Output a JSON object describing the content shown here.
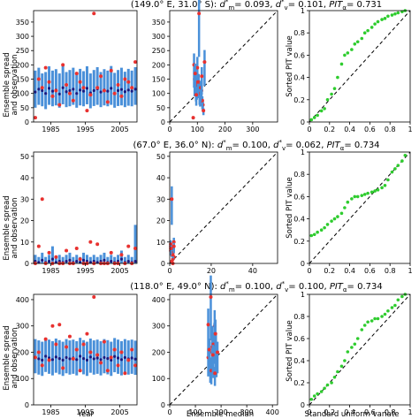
{
  "figure": {
    "row_titles": [
      "(149.0° E, 31.0° S): d*m= 0.093, d*v= 0.101, PITα= 0.731",
      "(67.0° E, 36.0° N): d*m= 0.100, d*v= 0.062, PITα= 0.734",
      "(118.0° E, 49.0° N): d*m= 0.100, d*v= 0.100, PITα= 0.734"
    ],
    "ts_ylabel_line1": "Ensemble spread",
    "ts_ylabel_line2": "and observation",
    "pit_ylabel": "Sorted PIT value",
    "xlabel_ts": "Year",
    "xlabel_scatter": "Ensemble median",
    "xlabel_pit": "Standard uniform variate",
    "colors": {
      "spread": "#4a90d9",
      "median": "#1a1a80",
      "obs": "#e8312f",
      "pit": "#2ecc2e",
      "diag": "#000000"
    }
  },
  "chart_data": [
    {
      "type": "errorbar",
      "row": 1,
      "panel": "time-series",
      "x": [
        1980,
        1981,
        1982,
        1983,
        1984,
        1985,
        1986,
        1987,
        1988,
        1989,
        1990,
        1991,
        1992,
        1993,
        1994,
        1995,
        1996,
        1997,
        1998,
        1999,
        2000,
        2001,
        2002,
        2003,
        2004,
        2005,
        2006,
        2007,
        2008,
        2009
      ],
      "median": [
        105,
        115,
        110,
        100,
        118,
        108,
        112,
        98,
        120,
        106,
        110,
        115,
        100,
        112,
        108,
        118,
        102,
        110,
        116,
        105,
        112,
        108,
        118,
        100,
        110,
        114,
        106,
        112,
        108,
        115
      ],
      "spread_low": [
        50,
        60,
        55,
        45,
        60,
        55,
        58,
        50,
        62,
        52,
        55,
        60,
        50,
        58,
        55,
        62,
        48,
        56,
        60,
        52,
        58,
        55,
        60,
        50,
        56,
        58,
        52,
        57,
        55,
        60
      ],
      "spread_high": [
        180,
        190,
        170,
        175,
        195,
        180,
        185,
        170,
        200,
        175,
        182,
        190,
        172,
        186,
        178,
        195,
        170,
        182,
        192,
        175,
        185,
        180,
        196,
        172,
        182,
        190,
        176,
        186,
        180,
        192
      ],
      "obs": [
        15,
        150,
        120,
        190,
        140,
        90,
        110,
        60,
        200,
        130,
        100,
        75,
        170,
        140,
        120,
        40,
        95,
        380,
        120,
        160,
        110,
        70,
        180,
        100,
        130,
        90,
        150,
        140,
        120,
        210
      ],
      "xticks": [
        1985,
        1995,
        2005
      ],
      "xlim": [
        1980,
        2010
      ],
      "yticks": [
        0,
        50,
        100,
        150,
        200,
        250,
        300,
        350
      ],
      "ylim": [
        0,
        390
      ]
    },
    {
      "type": "scatter",
      "row": 1,
      "panel": "median-vs-observation",
      "xlim": [
        0,
        390
      ],
      "ylim": [
        0,
        390
      ],
      "xticks": [
        0,
        100,
        200,
        300
      ],
      "yticks": [
        0,
        50,
        100,
        150,
        200,
        250,
        300,
        350
      ],
      "x": [
        85,
        90,
        95,
        100,
        105,
        110,
        115,
        120,
        88,
        98,
        108,
        118,
        92,
        102,
        112,
        122,
        96,
        106,
        116,
        126
      ],
      "y": [
        15,
        150,
        120,
        190,
        140,
        90,
        110,
        60,
        200,
        130,
        100,
        75,
        170,
        140,
        120,
        40,
        95,
        380,
        160,
        210
      ]
    },
    {
      "type": "scatter",
      "row": 1,
      "panel": "PIT",
      "xlim": [
        0,
        1
      ],
      "ylim": [
        0,
        1
      ],
      "xticks": [
        0.0,
        0.2,
        0.4,
        0.6,
        0.8,
        1.0
      ],
      "yticks": [
        0.0,
        0.2,
        0.4,
        0.6,
        0.8,
        1.0
      ],
      "x": [
        0.02,
        0.05,
        0.08,
        0.12,
        0.15,
        0.18,
        0.22,
        0.25,
        0.28,
        0.32,
        0.35,
        0.38,
        0.42,
        0.45,
        0.48,
        0.52,
        0.55,
        0.58,
        0.62,
        0.65,
        0.68,
        0.72,
        0.75,
        0.78,
        0.82,
        0.85,
        0.88,
        0.92,
        0.95
      ],
      "y": [
        0.02,
        0.04,
        0.06,
        0.1,
        0.12,
        0.2,
        0.25,
        0.3,
        0.4,
        0.52,
        0.6,
        0.62,
        0.65,
        0.7,
        0.72,
        0.75,
        0.8,
        0.82,
        0.85,
        0.88,
        0.9,
        0.92,
        0.93,
        0.95,
        0.96,
        0.97,
        0.98,
        0.99,
        1.0
      ]
    },
    {
      "type": "errorbar",
      "row": 2,
      "panel": "time-series",
      "x": [
        1980,
        1981,
        1982,
        1983,
        1984,
        1985,
        1986,
        1987,
        1988,
        1989,
        1990,
        1991,
        1992,
        1993,
        1994,
        1995,
        1996,
        1997,
        1998,
        1999,
        2000,
        2001,
        2002,
        2003,
        2004,
        2005,
        2006,
        2007,
        2008,
        2009
      ],
      "median": [
        1,
        0.5,
        1.5,
        0.5,
        1,
        2,
        0.5,
        1,
        0.5,
        1,
        1.5,
        0.5,
        1,
        0.5,
        1.5,
        1,
        0.5,
        1,
        0.5,
        1,
        1.5,
        0.5,
        1,
        0.5,
        1,
        2,
        0.5,
        1,
        0.5,
        1
      ],
      "spread_low": [
        0,
        0,
        0,
        0,
        0,
        0,
        0,
        0,
        0,
        0,
        0,
        0,
        0,
        0,
        0,
        0,
        0,
        0,
        0,
        0,
        0,
        0,
        0,
        0,
        0,
        0,
        0,
        0,
        0,
        0
      ],
      "spread_high": [
        4,
        3,
        5,
        3,
        4,
        8,
        3,
        4,
        3,
        4,
        5,
        3,
        4,
        3,
        5,
        4,
        3,
        4,
        3,
        4,
        5,
        3,
        4,
        3,
        4,
        6,
        3,
        4,
        3,
        18
      ],
      "obs": [
        0,
        8,
        30,
        0,
        5,
        0,
        3,
        0,
        0,
        6,
        0,
        0,
        7,
        2,
        0,
        0,
        10,
        0,
        9,
        0,
        0,
        0,
        5,
        0,
        0,
        4,
        0,
        8,
        0,
        7
      ],
      "xticks": [
        1985,
        1995,
        2005
      ],
      "xlim": [
        1980,
        2010
      ],
      "yticks": [
        0,
        10,
        20,
        30,
        40,
        50
      ],
      "ylim": [
        0,
        52
      ]
    },
    {
      "type": "scatter",
      "row": 2,
      "panel": "median-vs-observation",
      "xlim": [
        0,
        52
      ],
      "ylim": [
        0,
        52
      ],
      "xticks": [
        0,
        20,
        40
      ],
      "yticks": [
        0,
        10,
        20,
        30,
        40,
        50
      ],
      "x": [
        0.5,
        1,
        1.5,
        2,
        0.5,
        1,
        1.5,
        2,
        0.5,
        1,
        1.5,
        2,
        0.5,
        1,
        1.5
      ],
      "y": [
        8,
        30,
        5,
        3,
        6,
        7,
        2,
        10,
        9,
        5,
        4,
        8,
        7,
        1,
        0
      ]
    },
    {
      "type": "scatter",
      "row": 2,
      "panel": "PIT",
      "xlim": [
        0,
        1
      ],
      "ylim": [
        0,
        1
      ],
      "xticks": [
        0.0,
        0.2,
        0.4,
        0.6,
        0.8,
        1.0
      ],
      "yticks": [
        0.0,
        0.2,
        0.4,
        0.6,
        0.8,
        1.0
      ],
      "x": [
        0.02,
        0.05,
        0.08,
        0.12,
        0.15,
        0.18,
        0.22,
        0.25,
        0.28,
        0.32,
        0.35,
        0.38,
        0.42,
        0.45,
        0.48,
        0.52,
        0.55,
        0.58,
        0.62,
        0.65,
        0.68,
        0.72,
        0.75,
        0.78,
        0.82,
        0.85,
        0.88,
        0.92,
        0.95
      ],
      "y": [
        0.25,
        0.26,
        0.28,
        0.3,
        0.32,
        0.35,
        0.38,
        0.4,
        0.42,
        0.45,
        0.5,
        0.55,
        0.58,
        0.6,
        0.6,
        0.61,
        0.62,
        0.63,
        0.64,
        0.65,
        0.66,
        0.68,
        0.7,
        0.75,
        0.82,
        0.85,
        0.88,
        0.92,
        0.97
      ]
    },
    {
      "type": "errorbar",
      "row": 3,
      "panel": "time-series",
      "x": [
        1980,
        1981,
        1982,
        1983,
        1984,
        1985,
        1986,
        1987,
        1988,
        1989,
        1990,
        1991,
        1992,
        1993,
        1994,
        1995,
        1996,
        1997,
        1998,
        1999,
        2000,
        2001,
        2002,
        2003,
        2004,
        2005,
        2006,
        2007,
        2008,
        2009
      ],
      "median": [
        180,
        175,
        170,
        185,
        178,
        172,
        182,
        176,
        170,
        180,
        175,
        178,
        172,
        185,
        176,
        170,
        182,
        175,
        178,
        172,
        180,
        176,
        170,
        184,
        178,
        172,
        180,
        175,
        178,
        174
      ],
      "spread_low": [
        120,
        115,
        110,
        125,
        118,
        112,
        122,
        116,
        110,
        120,
        115,
        118,
        112,
        125,
        116,
        110,
        122,
        115,
        118,
        112,
        120,
        116,
        110,
        124,
        118,
        112,
        120,
        115,
        118,
        114
      ],
      "spread_high": [
        250,
        245,
        240,
        255,
        248,
        242,
        252,
        246,
        240,
        250,
        245,
        248,
        242,
        255,
        246,
        240,
        252,
        245,
        248,
        242,
        250,
        246,
        240,
        254,
        248,
        242,
        250,
        245,
        248,
        244
      ],
      "obs": [
        180,
        200,
        150,
        250,
        170,
        300,
        230,
        305,
        140,
        220,
        260,
        175,
        210,
        130,
        230,
        270,
        200,
        410,
        190,
        160,
        240,
        130,
        180,
        210,
        150,
        200,
        120,
        170,
        210,
        150
      ],
      "xticks": [
        1985,
        1995,
        2005
      ],
      "xlim": [
        1980,
        2010
      ],
      "yticks": [
        0,
        100,
        200,
        300,
        400
      ],
      "ylim": [
        0,
        420
      ]
    },
    {
      "type": "scatter",
      "row": 3,
      "panel": "median-vs-observation",
      "xlim": [
        0,
        420
      ],
      "ylim": [
        0,
        420
      ],
      "xticks": [
        0,
        100,
        200,
        300,
        400
      ],
      "yticks": [
        0,
        100,
        200,
        300,
        400
      ],
      "x": [
        150,
        155,
        160,
        165,
        170,
        175,
        180,
        150,
        158,
        166,
        174,
        182,
        154,
        162,
        170,
        178,
        186,
        160,
        168,
        176
      ],
      "y": [
        180,
        200,
        150,
        250,
        170,
        300,
        230,
        305,
        140,
        220,
        260,
        175,
        210,
        130,
        230,
        270,
        200,
        410,
        190,
        120
      ]
    },
    {
      "type": "scatter",
      "row": 3,
      "panel": "PIT",
      "xlim": [
        0,
        1
      ],
      "ylim": [
        0,
        1
      ],
      "xticks": [
        0.0,
        0.2,
        0.4,
        0.6,
        0.8,
        1.0
      ],
      "yticks": [
        0.0,
        0.2,
        0.4,
        0.6,
        0.8,
        1.0
      ],
      "x": [
        0.02,
        0.05,
        0.08,
        0.12,
        0.15,
        0.18,
        0.22,
        0.25,
        0.28,
        0.32,
        0.35,
        0.38,
        0.42,
        0.45,
        0.48,
        0.52,
        0.55,
        0.58,
        0.62,
        0.65,
        0.68,
        0.72,
        0.75,
        0.78,
        0.82,
        0.85,
        0.88,
        0.92,
        0.95
      ],
      "y": [
        0.05,
        0.08,
        0.1,
        0.12,
        0.15,
        0.18,
        0.2,
        0.25,
        0.3,
        0.35,
        0.4,
        0.48,
        0.52,
        0.55,
        0.6,
        0.68,
        0.72,
        0.75,
        0.76,
        0.78,
        0.78,
        0.8,
        0.82,
        0.85,
        0.88,
        0.9,
        0.95,
        0.98,
        1.0
      ]
    }
  ]
}
